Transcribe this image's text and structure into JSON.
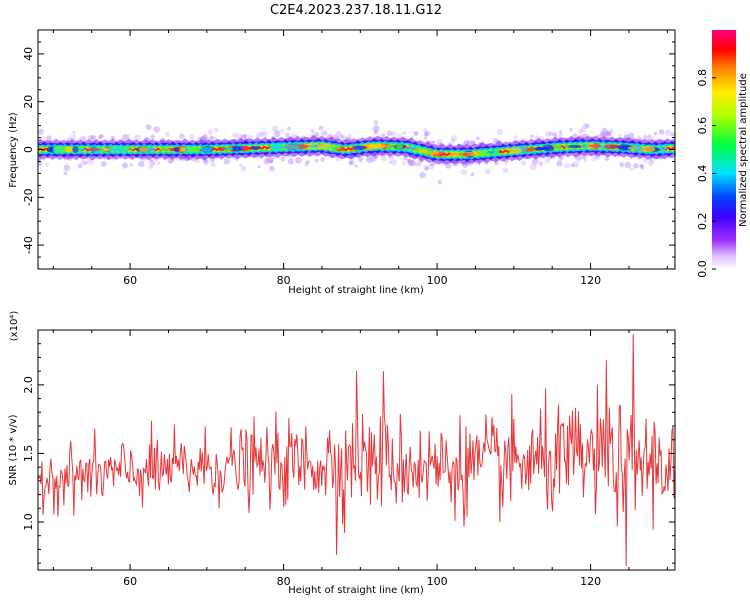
{
  "title": "C2E4.2023.237.18.11.G12",
  "chart_data": [
    {
      "type": "heatmap",
      "xlabel": "Height of straight line (km)",
      "ylabel": "Frequency (Hz)",
      "xlim": [
        48,
        131
      ],
      "ylim": [
        -50,
        50
      ],
      "xticks": [
        60,
        80,
        100,
        120
      ],
      "yticks": [
        -40,
        -20,
        0,
        20,
        40
      ],
      "colorbar": {
        "label": "Normalized spectral amplitude",
        "ticks": [
          0.0,
          0.2,
          0.4,
          0.6,
          0.8
        ],
        "range": [
          0,
          1
        ]
      },
      "ridge": {
        "description": "Narrow band of high spectral amplitude tracking frequency vs height",
        "x": [
          48,
          55,
          60,
          65,
          70,
          75,
          80,
          85,
          88,
          92,
          96,
          100,
          104,
          108,
          112,
          116,
          120,
          124,
          128,
          131
        ],
        "y": [
          0,
          0,
          0,
          0,
          0,
          0.5,
          1,
          1.5,
          0,
          1.5,
          1,
          -2,
          -2,
          -1,
          0,
          1,
          1.5,
          1,
          0,
          0.5
        ]
      }
    },
    {
      "type": "line",
      "xlabel": "Height of straight line (km)",
      "ylabel": "SNR (10 * v/v)",
      "y_multiplier": "(x10⁴)",
      "xlim": [
        48,
        131
      ],
      "ylim": [
        0.65,
        2.4
      ],
      "xticks": [
        60,
        80,
        100,
        120
      ],
      "yticks": [
        1.0,
        1.5,
        2.0
      ],
      "color": "#e8373a",
      "trend": {
        "x": [
          48,
          60,
          70,
          80,
          90,
          100,
          110,
          120,
          131
        ],
        "mean": [
          1.32,
          1.36,
          1.4,
          1.42,
          1.45,
          1.4,
          1.42,
          1.46,
          1.42
        ],
        "spread": [
          0.18,
          0.2,
          0.22,
          0.25,
          0.3,
          0.28,
          0.3,
          0.35,
          0.3
        ],
        "peaks": [
          [
            125.5,
            2.37
          ],
          [
            124.7,
            0.68
          ],
          [
            86.9,
            0.76
          ],
          [
            122.0,
            2.18
          ],
          [
            93.0,
            2.1
          ],
          [
            89.5,
            2.1
          ]
        ]
      }
    }
  ]
}
